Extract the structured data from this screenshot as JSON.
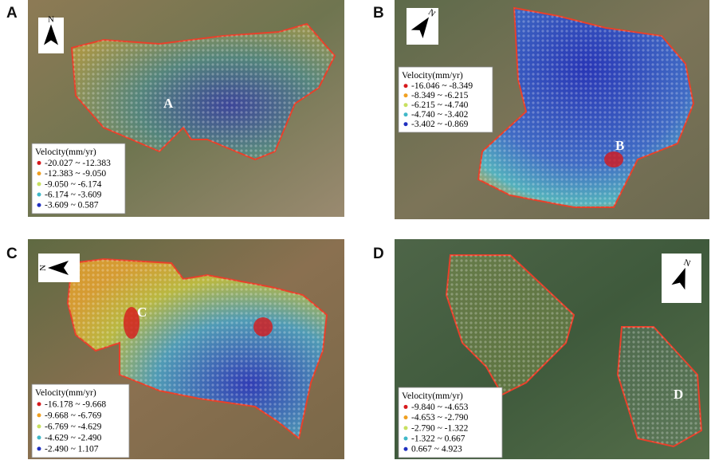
{
  "legend_colors": [
    "#d7191c",
    "#f0a020",
    "#c8e060",
    "#40b8c8",
    "#2030c0"
  ],
  "panels": [
    {
      "letter": "A",
      "site": "A",
      "north": "N",
      "legend": {
        "title": "Velocity(mm/yr)",
        "items": [
          "-20.027 ~ -12.383",
          "-12.383 ~ -9.050",
          "-9.050 ~ -6.174",
          "-6.174 ~ -3.609",
          "-3.609 ~ 0.587"
        ]
      }
    },
    {
      "letter": "B",
      "site": "B",
      "north": "N",
      "legend": {
        "title": "Velocity(mm/yr)",
        "items": [
          "-16.046 ~ -8.349",
          "-8.349 ~ -6.215",
          "-6.215 ~ -4.740",
          "-4.740 ~ -3.402",
          "-3.402 ~ -0.869"
        ]
      }
    },
    {
      "letter": "C",
      "site": "C",
      "north": "N",
      "legend": {
        "title": "Velocity(mm/yr)",
        "items": [
          "-16.178 ~ -9.668",
          "-9.668 ~ -6.769",
          "-6.769 ~ -4.629",
          "-4.629 ~ -2.490",
          "-2.490 ~ 1.107"
        ]
      }
    },
    {
      "letter": "D",
      "site": "D",
      "north": "N",
      "legend": {
        "title": "Velocity(mm/yr)",
        "items": [
          "-9.840 ~ -4.653",
          "-4.653 ~ -2.790",
          "-2.790 ~ -1.322",
          "-1.322 ~ 0.667",
          "0.667 ~ 4.923"
        ]
      }
    }
  ]
}
